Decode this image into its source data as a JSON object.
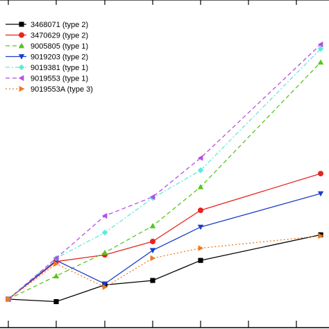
{
  "chart_data": {
    "type": "line",
    "title": "",
    "xlabel": "",
    "ylabel": "",
    "x": [
      1,
      2,
      3,
      4,
      5,
      6,
      7
    ],
    "grid": false,
    "legend_position": "top-left",
    "series": [
      {
        "name": "3468071 (type 2)",
        "color": "#000000",
        "marker": "square",
        "dash": "solid",
        "values": [
          0.22,
          0.0,
          1.5,
          1.9,
          3.7,
          null,
          6.0
        ]
      },
      {
        "name": "3470629 (type 2)",
        "color": "#e8231f",
        "marker": "circle",
        "dash": "solid",
        "values": [
          0.22,
          3.6,
          4.2,
          5.4,
          8.2,
          null,
          11.5
        ]
      },
      {
        "name": "9005805 (type 1)",
        "color": "#55c61b",
        "marker": "triangle-up",
        "dash": "dashed",
        "values": [
          0.22,
          2.3,
          4.4,
          6.8,
          10.3,
          null,
          21.5
        ]
      },
      {
        "name": "9019203 (type 2)",
        "color": "#1b3ec9",
        "marker": "triangle-down",
        "dash": "solid",
        "values": [
          0.22,
          3.7,
          1.6,
          4.6,
          6.7,
          null,
          9.7
        ]
      },
      {
        "name": "9019381 (type 1)",
        "color": "#5fe9d9",
        "marker": "diamond",
        "dash": "dashdot",
        "values": [
          0.22,
          3.9,
          6.2,
          9.3,
          11.8,
          null,
          22.7
        ]
      },
      {
        "name": "9019553 (type 1)",
        "color": "#b24fe6",
        "marker": "triangle-left",
        "dash": "dashed",
        "values": [
          0.22,
          3.9,
          7.7,
          9.4,
          12.9,
          null,
          23.1
        ]
      },
      {
        "name": "9019553A (type 3)",
        "color": "#ef7a1c",
        "marker": "triangle-right",
        "dash": "dotted",
        "values": [
          0.22,
          3.4,
          1.3,
          3.9,
          4.8,
          null,
          5.9
        ]
      }
    ],
    "xlim": [
      0.5,
      7.5
    ],
    "ylim": [
      -1.5,
      25.5
    ]
  }
}
